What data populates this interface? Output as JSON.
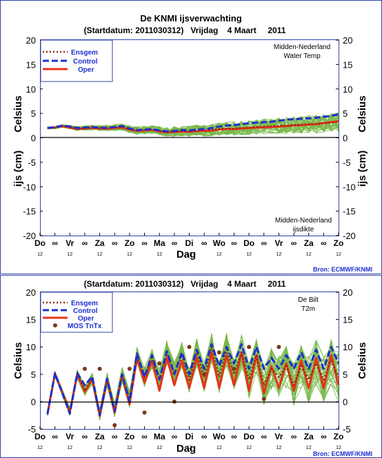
{
  "page": {
    "title": "De KNMI ijsverwachting",
    "subtitle_top": "(Startdatum: 2011030312)   Vrijdag    4 Maart     2011",
    "subtitle_bottom": "(Startdatum: 2011030312)   Vrijdag    4 Maart     2011",
    "source_top": "Bron: ECMWF/KNMI",
    "source_bottom": "Bron: ECMWF/KNMI"
  },
  "x_axis": {
    "ticks": [
      "Do",
      "∞",
      "Vr",
      "∞",
      "Za",
      "∞",
      "Zo",
      "∞",
      "Ma",
      "∞",
      "Di",
      "∞",
      "Wo",
      "∞",
      "Do",
      "∞",
      "Vr",
      "∞",
      "Za",
      "∞",
      "Zo"
    ],
    "sub_ticks": [
      "12",
      "12",
      "12",
      "12",
      "12",
      "12",
      "12",
      "12",
      "12",
      "12",
      "12"
    ],
    "label": "Dag"
  },
  "legend_top": [
    "Ensgem",
    "Control",
    "Oper"
  ],
  "legend_bottom": [
    "Ensgem",
    "Control",
    "Oper",
    "MOS TnTx"
  ],
  "colors": {
    "ensgem": "#8b2a0a",
    "control": "#1c2fd0",
    "oper": "#e8321a",
    "members": "#79b84a",
    "mos": "#7a3a1a",
    "frame": "#3344aa",
    "legend_text": "#1c2fd0"
  },
  "chart_data": [
    {
      "type": "line",
      "title": "Water Temp",
      "location": "Midden-Nederland",
      "ylabel": "Celsius",
      "ylim": [
        -20,
        20
      ],
      "yticks": [
        -20,
        -15,
        -10,
        -5,
        0,
        5,
        10,
        15,
        20
      ],
      "xrange_ticks": [
        0,
        20
      ],
      "x": [
        0.5,
        1,
        1.5,
        2,
        2.5,
        3,
        3.5,
        4,
        4.5,
        5,
        5.5,
        6,
        6.5,
        7,
        7.5,
        8,
        8.5,
        9,
        9.5,
        10,
        10.5,
        11,
        11.5,
        12,
        12.5,
        13,
        13.5,
        14,
        14.5,
        15,
        15.5,
        16,
        16.5,
        17,
        17.5,
        18,
        18.5,
        19,
        19.5,
        20
      ],
      "series": [
        {
          "name": "Ensgem",
          "style": "dotted",
          "values": [
            2.0,
            2.1,
            2.4,
            2.2,
            1.9,
            2.0,
            2.1,
            2.0,
            2.0,
            2.1,
            2.2,
            1.8,
            1.5,
            1.6,
            1.7,
            1.4,
            1.2,
            1.3,
            1.4,
            1.3,
            1.5,
            1.5,
            1.6,
            1.8,
            1.9,
            1.9,
            2.0,
            2.1,
            2.2,
            2.3,
            2.4,
            2.5,
            2.5,
            2.6,
            2.7,
            2.8,
            2.8,
            3.0,
            3.1,
            3.2
          ]
        },
        {
          "name": "Control",
          "style": "dashed",
          "values": [
            2.0,
            2.2,
            2.5,
            2.3,
            2.0,
            2.1,
            2.2,
            2.1,
            2.0,
            2.2,
            2.4,
            1.9,
            1.6,
            1.7,
            1.8,
            1.5,
            1.3,
            1.4,
            1.6,
            1.5,
            1.7,
            1.8,
            2.0,
            2.3,
            2.5,
            2.6,
            2.8,
            3.0,
            3.1,
            3.2,
            3.3,
            3.5,
            3.7,
            3.8,
            3.9,
            4.0,
            4.1,
            4.3,
            4.5,
            4.8
          ]
        },
        {
          "name": "Oper",
          "style": "solid",
          "values": [
            2.0,
            2.1,
            2.4,
            2.1,
            1.8,
            1.9,
            2.0,
            1.9,
            1.9,
            2.0,
            2.1,
            1.7,
            1.4,
            1.5,
            1.6,
            1.3,
            1.1,
            1.2,
            1.3,
            1.2,
            1.4,
            1.4,
            1.5,
            1.7,
            1.8,
            1.8,
            1.9,
            2.0,
            2.1,
            2.1,
            2.2,
            2.3,
            2.4,
            2.5,
            2.6,
            2.7,
            2.8,
            3.0,
            3.2,
            3.4
          ]
        }
      ],
      "lower_panel": {
        "ylabel": "ijs (cm)",
        "title": "ijsdikte",
        "location": "Midden-Nederland"
      }
    },
    {
      "type": "line",
      "title": "T2m",
      "location": "De Bilt",
      "ylabel": "Celsius",
      "ylim": [
        -5,
        20
      ],
      "yticks": [
        -5,
        0,
        5,
        10,
        15,
        20
      ],
      "x": [
        0.5,
        1,
        2,
        2.5,
        3,
        3.5,
        4,
        4.5,
        5,
        5.5,
        6,
        6.5,
        7,
        7.5,
        8,
        8.5,
        9,
        9.5,
        10,
        10.5,
        11,
        11.5,
        12,
        12.5,
        13,
        13.5,
        14,
        14.5,
        15,
        15.5,
        16,
        16.5,
        17,
        17.5,
        18,
        18.5,
        19,
        19.5,
        20
      ],
      "series": [
        {
          "name": "Ensgem",
          "style": "dotted",
          "values": [
            -2.3,
            5.0,
            -1.8,
            5.0,
            2.0,
            4.2,
            -2.3,
            4.0,
            -1.5,
            4.8,
            0.5,
            8.5,
            4.5,
            8.0,
            4.0,
            9.0,
            5.0,
            8.5,
            4.0,
            9.0,
            4.5,
            10.0,
            4.5,
            9.5,
            5.0,
            9.0,
            4.0,
            8.5,
            3.0,
            6.0,
            4.5,
            6.5,
            3.0,
            6.5,
            4.0,
            7.0,
            4.0,
            7.5,
            4.5
          ]
        },
        {
          "name": "Control",
          "style": "dashed",
          "values": [
            -2.3,
            5.2,
            -2.2,
            5.2,
            3.0,
            4.6,
            -2.5,
            4.2,
            -1.8,
            5.0,
            0.0,
            8.8,
            4.5,
            8.5,
            4.0,
            9.2,
            5.0,
            9.0,
            5.0,
            9.5,
            6.0,
            10.5,
            6.5,
            10.0,
            7.0,
            10.5,
            6.0,
            10.0,
            6.0,
            8.0,
            6.0,
            8.5,
            6.0,
            9.0,
            6.0,
            9.5,
            6.0,
            10.0,
            7.0
          ]
        },
        {
          "name": "Oper",
          "style": "solid",
          "values": [
            -2.3,
            5.1,
            -1.9,
            5.0,
            1.8,
            4.1,
            -2.6,
            4.0,
            -2.0,
            4.9,
            -0.5,
            8.0,
            3.5,
            7.5,
            2.0,
            8.0,
            3.0,
            7.5,
            2.5,
            8.0,
            2.5,
            9.0,
            2.5,
            8.5,
            3.0,
            9.0,
            2.0,
            8.5,
            1.5,
            6.5,
            2.5,
            7.0,
            2.0,
            7.5,
            2.5,
            8.0,
            2.5,
            8.5,
            3.0
          ]
        }
      ],
      "mos_tntx": {
        "name": "MOS TnTx",
        "x": [
          3,
          4,
          5,
          6,
          7,
          8,
          9,
          10,
          11,
          12,
          13,
          14,
          15,
          16
        ],
        "values": [
          6.0,
          6.0,
          -4.3,
          6.0,
          -2.0,
          7.0,
          0.0,
          10.0,
          5.0,
          9.0,
          6.0,
          10.0,
          0.5,
          10.0
        ]
      }
    }
  ]
}
